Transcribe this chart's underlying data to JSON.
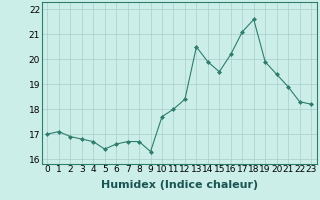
{
  "x": [
    0,
    1,
    2,
    3,
    4,
    5,
    6,
    7,
    8,
    9,
    10,
    11,
    12,
    13,
    14,
    15,
    16,
    17,
    18,
    19,
    20,
    21,
    22,
    23
  ],
  "y": [
    17.0,
    17.1,
    16.9,
    16.8,
    16.7,
    16.4,
    16.6,
    16.7,
    16.7,
    16.3,
    17.7,
    18.0,
    18.4,
    20.5,
    19.9,
    19.5,
    20.2,
    21.1,
    21.6,
    19.9,
    19.4,
    18.9,
    18.3,
    18.2
  ],
  "line_color": "#2e7d6e",
  "marker": "D",
  "marker_size": 2,
  "bg_color": "#cceee8",
  "grid_color": "#aacccc",
  "xlabel": "Humidex (Indice chaleur)",
  "xlabel_fontsize": 8,
  "ylim": [
    15.8,
    22.3
  ],
  "yticks": [
    16,
    17,
    18,
    19,
    20,
    21,
    22
  ],
  "xticks": [
    0,
    1,
    2,
    3,
    4,
    5,
    6,
    7,
    8,
    9,
    10,
    11,
    12,
    13,
    14,
    15,
    16,
    17,
    18,
    19,
    20,
    21,
    22,
    23
  ],
  "xtick_labels": [
    "0",
    "1",
    "2",
    "3",
    "4",
    "5",
    "6",
    "7",
    "8",
    "9",
    "10",
    "11",
    "12",
    "13",
    "14",
    "15",
    "16",
    "17",
    "18",
    "19",
    "20",
    "21",
    "22",
    "23"
  ],
  "tick_fontsize": 6.5
}
